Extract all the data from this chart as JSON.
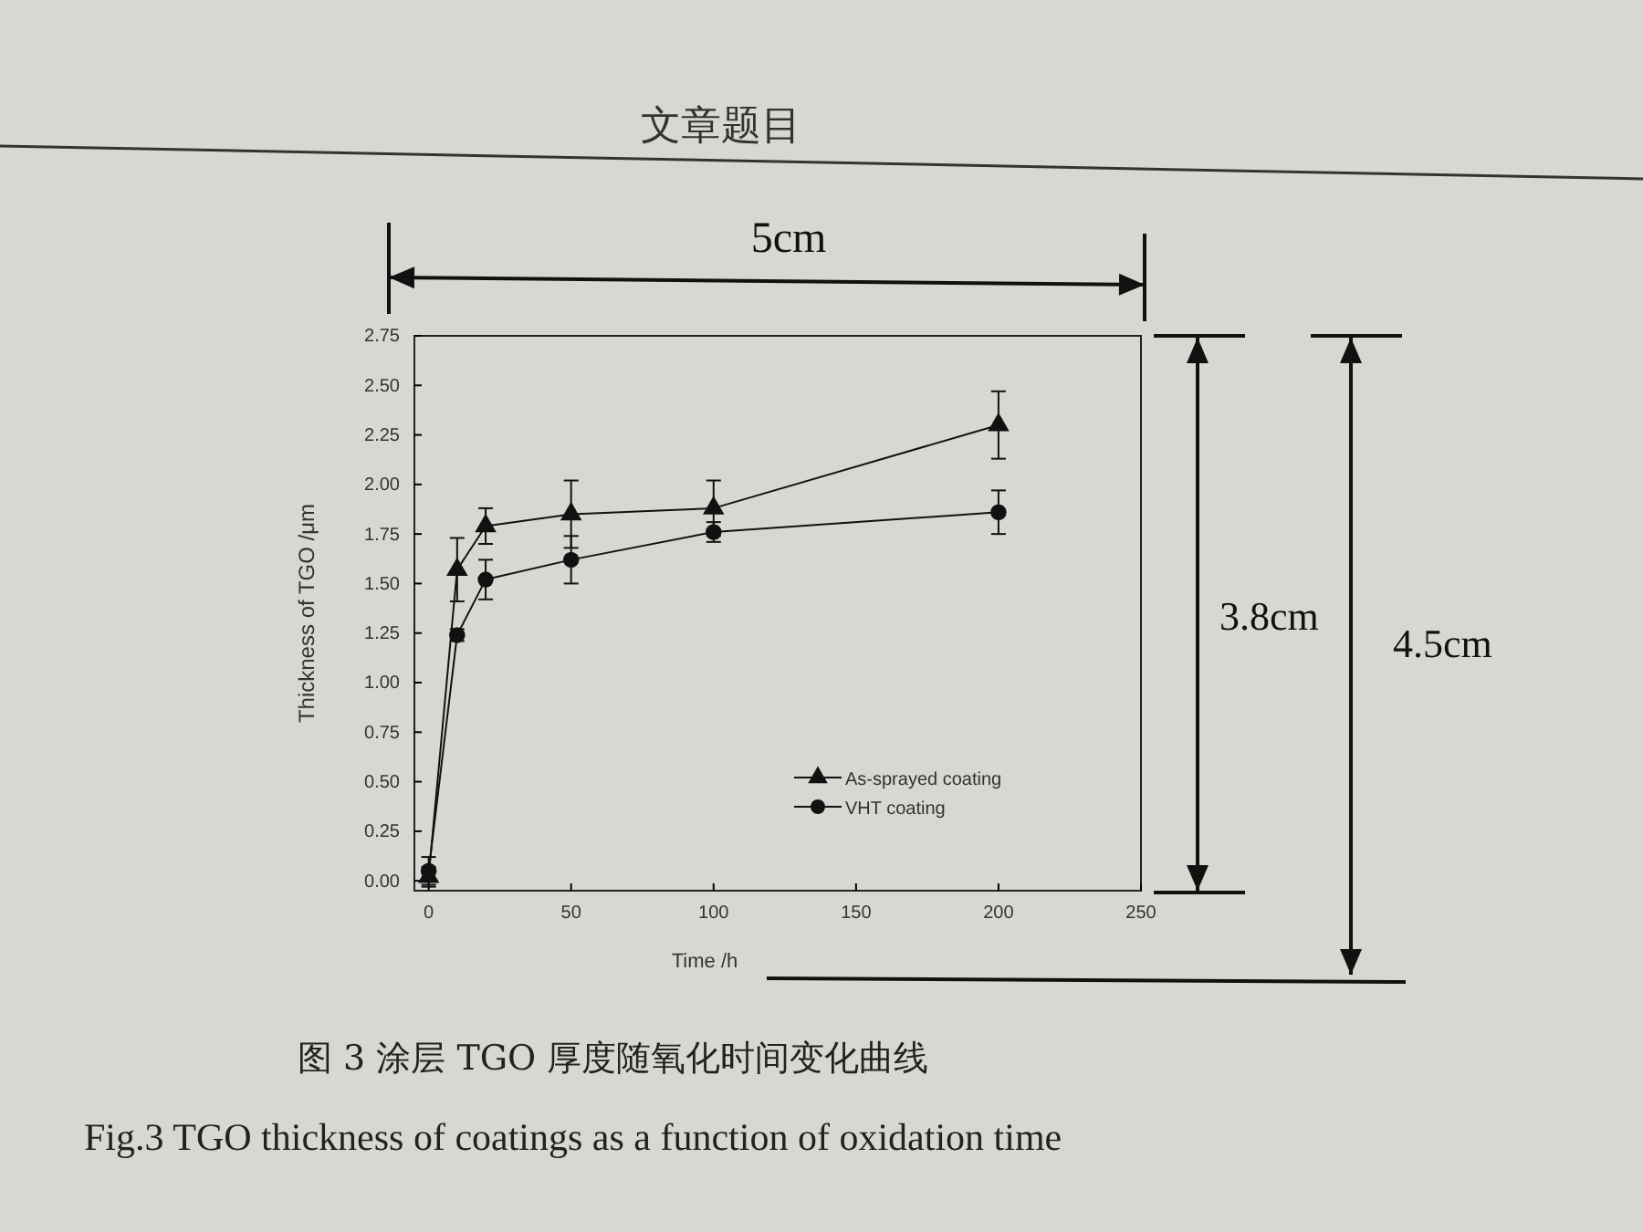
{
  "chart_data": {
    "type": "line",
    "title": "文章题目",
    "xlabel": "Time /h",
    "ylabel": "Thickness of TGO /μm",
    "x": [
      0,
      10,
      20,
      50,
      100,
      200
    ],
    "series": [
      {
        "name": "As-sprayed coating",
        "color": "#111111",
        "marker": "triangle",
        "values": [
          0.02,
          1.57,
          1.79,
          1.85,
          1.88,
          2.3
        ],
        "errors": [
          0.05,
          0.16,
          0.09,
          0.17,
          0.14,
          0.17
        ]
      },
      {
        "name": "VHT coating",
        "color": "#111111",
        "marker": "circle",
        "values": [
          0.05,
          1.24,
          1.52,
          1.62,
          1.76,
          1.86
        ],
        "errors": [
          0.07,
          0.03,
          0.1,
          0.12,
          0.05,
          0.11
        ]
      }
    ],
    "xlim": [
      -5,
      250
    ],
    "xticks": [
      0,
      50,
      100,
      150,
      200,
      250
    ],
    "ylim": [
      -0.05,
      2.75
    ],
    "yticks": [
      {
        "value": 0,
        "label": "0.00"
      },
      {
        "value": 0.25,
        "label": "0.25"
      },
      {
        "value": 0.5,
        "label": "0.50"
      },
      {
        "value": 0.75,
        "label": "0.75"
      },
      {
        "value": 1,
        "label": "1.00"
      },
      {
        "value": 1.25,
        "label": "1.25"
      },
      {
        "value": 1.5,
        "label": "1.50"
      },
      {
        "value": 1.75,
        "label": "1.75"
      },
      {
        "value": 2,
        "label": "2.00"
      },
      {
        "value": 2.25,
        "label": "2.25"
      },
      {
        "value": 2.5,
        "label": "2.50"
      },
      {
        "value": 2.75,
        "label": "2.75"
      }
    ],
    "legend": "bottom right",
    "grid": false,
    "line_style": "solid",
    "annotations": [
      "5cm",
      "3.8cm",
      "4.5cm",
      "图 3  涂层 TGO 厚度随氧化时间变化曲线",
      "Fig.3    TGO thickness of coatings as a function of oxidation time"
    ]
  }
}
